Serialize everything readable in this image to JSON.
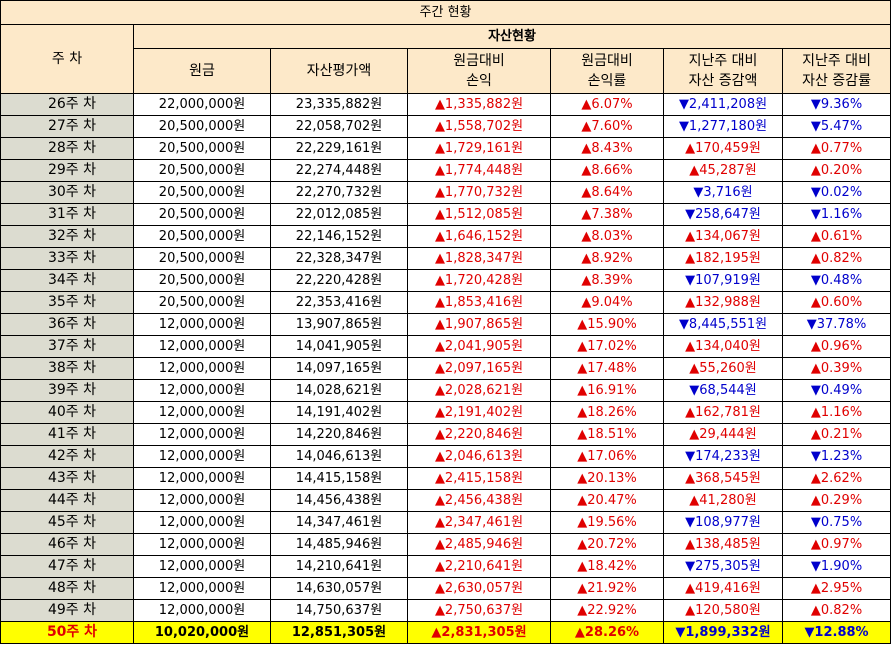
{
  "title": "주간 현황",
  "header": {
    "week": "주 차",
    "group": "자산현황",
    "cols": [
      {
        "line1": "원금",
        "line2": ""
      },
      {
        "line1": "자산평가액",
        "line2": ""
      },
      {
        "line1": "원금대비",
        "line2": "손익"
      },
      {
        "line1": "원금대비",
        "line2": "손익률"
      },
      {
        "line1": "지난주 대비",
        "line2": "자산 증감액"
      },
      {
        "line1": "지난주 대비",
        "line2": "자산 증감률"
      }
    ]
  },
  "colors": {
    "up": "#e00000",
    "down": "#0000cc",
    "header_bg": "#fde9c9",
    "week_bg": "#dcdcd0",
    "highlight": "#ffff00"
  },
  "rows": [
    {
      "week": "26주 차",
      "principal": "22,000,000원",
      "value": "23,335,882원",
      "pl": "▲1,335,882원",
      "pl_dir": "up",
      "rate": "▲6.07%",
      "rate_dir": "up",
      "chg": "▼2,411,208원",
      "chg_dir": "down",
      "chg_rate": "▼9.36%",
      "chg_rate_dir": "down"
    },
    {
      "week": "27주 차",
      "principal": "20,500,000원",
      "value": "22,058,702원",
      "pl": "▲1,558,702원",
      "pl_dir": "up",
      "rate": "▲7.60%",
      "rate_dir": "up",
      "chg": "▼1,277,180원",
      "chg_dir": "down",
      "chg_rate": "▼5.47%",
      "chg_rate_dir": "down"
    },
    {
      "week": "28주 차",
      "principal": "20,500,000원",
      "value": "22,229,161원",
      "pl": "▲1,729,161원",
      "pl_dir": "up",
      "rate": "▲8.43%",
      "rate_dir": "up",
      "chg": "▲170,459원",
      "chg_dir": "up",
      "chg_rate": "▲0.77%",
      "chg_rate_dir": "up"
    },
    {
      "week": "29주 차",
      "principal": "20,500,000원",
      "value": "22,274,448원",
      "pl": "▲1,774,448원",
      "pl_dir": "up",
      "rate": "▲8.66%",
      "rate_dir": "up",
      "chg": "▲45,287원",
      "chg_dir": "up",
      "chg_rate": "▲0.20%",
      "chg_rate_dir": "up"
    },
    {
      "week": "30주 차",
      "principal": "20,500,000원",
      "value": "22,270,732원",
      "pl": "▲1,770,732원",
      "pl_dir": "up",
      "rate": "▲8.64%",
      "rate_dir": "up",
      "chg": "▼3,716원",
      "chg_dir": "down",
      "chg_rate": "▼0.02%",
      "chg_rate_dir": "down"
    },
    {
      "week": "31주 차",
      "principal": "20,500,000원",
      "value": "22,012,085원",
      "pl": "▲1,512,085원",
      "pl_dir": "up",
      "rate": "▲7.38%",
      "rate_dir": "up",
      "chg": "▼258,647원",
      "chg_dir": "down",
      "chg_rate": "▼1.16%",
      "chg_rate_dir": "down"
    },
    {
      "week": "32주 차",
      "principal": "20,500,000원",
      "value": "22,146,152원",
      "pl": "▲1,646,152원",
      "pl_dir": "up",
      "rate": "▲8.03%",
      "rate_dir": "up",
      "chg": "▲134,067원",
      "chg_dir": "up",
      "chg_rate": "▲0.61%",
      "chg_rate_dir": "up"
    },
    {
      "week": "33주 차",
      "principal": "20,500,000원",
      "value": "22,328,347원",
      "pl": "▲1,828,347원",
      "pl_dir": "up",
      "rate": "▲8.92%",
      "rate_dir": "up",
      "chg": "▲182,195원",
      "chg_dir": "up",
      "chg_rate": "▲0.82%",
      "chg_rate_dir": "up"
    },
    {
      "week": "34주 차",
      "principal": "20,500,000원",
      "value": "22,220,428원",
      "pl": "▲1,720,428원",
      "pl_dir": "up",
      "rate": "▲8.39%",
      "rate_dir": "up",
      "chg": "▼107,919원",
      "chg_dir": "down",
      "chg_rate": "▼0.48%",
      "chg_rate_dir": "down"
    },
    {
      "week": "35주 차",
      "principal": "20,500,000원",
      "value": "22,353,416원",
      "pl": "▲1,853,416원",
      "pl_dir": "up",
      "rate": "▲9.04%",
      "rate_dir": "up",
      "chg": "▲132,988원",
      "chg_dir": "up",
      "chg_rate": "▲0.60%",
      "chg_rate_dir": "up"
    },
    {
      "week": "36주 차",
      "principal": "12,000,000원",
      "value": "13,907,865원",
      "pl": "▲1,907,865원",
      "pl_dir": "up",
      "rate": "▲15.90%",
      "rate_dir": "up",
      "chg": "▼8,445,551원",
      "chg_dir": "down",
      "chg_rate": "▼37.78%",
      "chg_rate_dir": "down"
    },
    {
      "week": "37주 차",
      "principal": "12,000,000원",
      "value": "14,041,905원",
      "pl": "▲2,041,905원",
      "pl_dir": "up",
      "rate": "▲17.02%",
      "rate_dir": "up",
      "chg": "▲134,040원",
      "chg_dir": "up",
      "chg_rate": "▲0.96%",
      "chg_rate_dir": "up"
    },
    {
      "week": "38주 차",
      "principal": "12,000,000원",
      "value": "14,097,165원",
      "pl": "▲2,097,165원",
      "pl_dir": "up",
      "rate": "▲17.48%",
      "rate_dir": "up",
      "chg": "▲55,260원",
      "chg_dir": "up",
      "chg_rate": "▲0.39%",
      "chg_rate_dir": "up"
    },
    {
      "week": "39주 차",
      "principal": "12,000,000원",
      "value": "14,028,621원",
      "pl": "▲2,028,621원",
      "pl_dir": "up",
      "rate": "▲16.91%",
      "rate_dir": "up",
      "chg": "▼68,544원",
      "chg_dir": "down",
      "chg_rate": "▼0.49%",
      "chg_rate_dir": "down"
    },
    {
      "week": "40주 차",
      "principal": "12,000,000원",
      "value": "14,191,402원",
      "pl": "▲2,191,402원",
      "pl_dir": "up",
      "rate": "▲18.26%",
      "rate_dir": "up",
      "chg": "▲162,781원",
      "chg_dir": "up",
      "chg_rate": "▲1.16%",
      "chg_rate_dir": "up"
    },
    {
      "week": "41주 차",
      "principal": "12,000,000원",
      "value": "14,220,846원",
      "pl": "▲2,220,846원",
      "pl_dir": "up",
      "rate": "▲18.51%",
      "rate_dir": "up",
      "chg": "▲29,444원",
      "chg_dir": "up",
      "chg_rate": "▲0.21%",
      "chg_rate_dir": "up"
    },
    {
      "week": "42주 차",
      "principal": "12,000,000원",
      "value": "14,046,613원",
      "pl": "▲2,046,613원",
      "pl_dir": "up",
      "rate": "▲17.06%",
      "rate_dir": "up",
      "chg": "▼174,233원",
      "chg_dir": "down",
      "chg_rate": "▼1.23%",
      "chg_rate_dir": "down"
    },
    {
      "week": "43주 차",
      "principal": "12,000,000원",
      "value": "14,415,158원",
      "pl": "▲2,415,158원",
      "pl_dir": "up",
      "rate": "▲20.13%",
      "rate_dir": "up",
      "chg": "▲368,545원",
      "chg_dir": "up",
      "chg_rate": "▲2.62%",
      "chg_rate_dir": "up"
    },
    {
      "week": "44주 차",
      "principal": "12,000,000원",
      "value": "14,456,438원",
      "pl": "▲2,456,438원",
      "pl_dir": "up",
      "rate": "▲20.47%",
      "rate_dir": "up",
      "chg": "▲41,280원",
      "chg_dir": "up",
      "chg_rate": "▲0.29%",
      "chg_rate_dir": "up"
    },
    {
      "week": "45주 차",
      "principal": "12,000,000원",
      "value": "14,347,461원",
      "pl": "▲2,347,461원",
      "pl_dir": "up",
      "rate": "▲19.56%",
      "rate_dir": "up",
      "chg": "▼108,977원",
      "chg_dir": "down",
      "chg_rate": "▼0.75%",
      "chg_rate_dir": "down"
    },
    {
      "week": "46주 차",
      "principal": "12,000,000원",
      "value": "14,485,946원",
      "pl": "▲2,485,946원",
      "pl_dir": "up",
      "rate": "▲20.72%",
      "rate_dir": "up",
      "chg": "▲138,485원",
      "chg_dir": "up",
      "chg_rate": "▲0.97%",
      "chg_rate_dir": "up"
    },
    {
      "week": "47주 차",
      "principal": "12,000,000원",
      "value": "14,210,641원",
      "pl": "▲2,210,641원",
      "pl_dir": "up",
      "rate": "▲18.42%",
      "rate_dir": "up",
      "chg": "▼275,305원",
      "chg_dir": "down",
      "chg_rate": "▼1.90%",
      "chg_rate_dir": "down"
    },
    {
      "week": "48주 차",
      "principal": "12,000,000원",
      "value": "14,630,057원",
      "pl": "▲2,630,057원",
      "pl_dir": "up",
      "rate": "▲21.92%",
      "rate_dir": "up",
      "chg": "▲419,416원",
      "chg_dir": "up",
      "chg_rate": "▲2.95%",
      "chg_rate_dir": "up"
    },
    {
      "week": "49주 차",
      "principal": "12,000,000원",
      "value": "14,750,637원",
      "pl": "▲2,750,637원",
      "pl_dir": "up",
      "rate": "▲22.92%",
      "rate_dir": "up",
      "chg": "▲120,580원",
      "chg_dir": "up",
      "chg_rate": "▲0.82%",
      "chg_rate_dir": "up"
    },
    {
      "week": "50주 차",
      "principal": "10,020,000원",
      "value": "12,851,305원",
      "pl": "▲2,831,305원",
      "pl_dir": "up",
      "rate": "▲28.26%",
      "rate_dir": "up",
      "chg": "▼1,899,332원",
      "chg_dir": "down",
      "chg_rate": "▼12.88%",
      "chg_rate_dir": "down"
    }
  ]
}
